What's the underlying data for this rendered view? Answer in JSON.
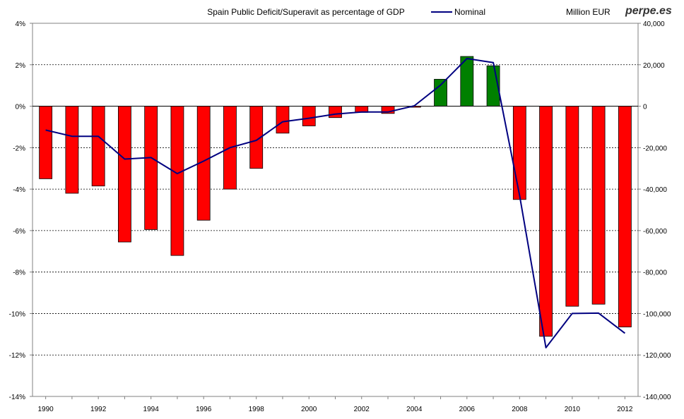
{
  "chart_data": {
    "type": "bar",
    "title": "Spain Public Deficit/Superavit as percentage of GDP",
    "right_axis_label": "Million EUR",
    "brand": "perpe.es",
    "categories": [
      "1990",
      "1991",
      "1992",
      "1993",
      "1994",
      "1995",
      "1996",
      "1997",
      "1998",
      "1999",
      "2000",
      "2001",
      "2002",
      "2003",
      "2004",
      "2005",
      "2006",
      "2007",
      "2008",
      "2009",
      "2010",
      "2011",
      "2012"
    ],
    "x_tick_labels": [
      "1990",
      "1992",
      "1994",
      "1996",
      "1998",
      "2000",
      "2002",
      "2004",
      "2006",
      "2008",
      "2010",
      "2012"
    ],
    "series": [
      {
        "axis": "left",
        "kind": "bar",
        "values": [
          -3.5,
          -4.2,
          -3.85,
          -6.55,
          -5.95,
          -7.2,
          -5.5,
          -4.0,
          -3.0,
          -1.3,
          -0.95,
          -0.55,
          -0.3,
          -0.35,
          -0.05,
          1.3,
          2.4,
          1.95,
          -4.5,
          -11.1,
          -9.65,
          -9.55,
          -10.65
        ],
        "positive_color": "#008000",
        "negative_color": "#ff0000"
      },
      {
        "axis": "right",
        "kind": "line",
        "name": "Nominal",
        "values": [
          -11500,
          -14500,
          -14500,
          -25500,
          -24800,
          -32500,
          -26500,
          -20000,
          -16500,
          -7500,
          -5800,
          -3800,
          -2800,
          -2800,
          200,
          10200,
          23000,
          21000,
          -43000,
          -116500,
          -100000,
          -99800,
          -109500
        ],
        "color": "#000080"
      }
    ],
    "y_left": {
      "min": -14,
      "max": 4,
      "step": 2,
      "tick_labels": [
        "4%",
        "2%",
        "0%",
        "-2%",
        "-4%",
        "-6%",
        "-8%",
        "-10%",
        "-12%",
        "-14%"
      ]
    },
    "y_right": {
      "min": -140000,
      "max": 40000,
      "step": 20000,
      "tick_labels": [
        "40,000",
        "20,000",
        "0",
        "-20,000",
        "-40,000",
        "-60,000",
        "-80,000",
        "-100,000",
        "-120,000",
        "-140,000"
      ]
    },
    "grid": "horizontal dashed",
    "legend": "top-center"
  }
}
